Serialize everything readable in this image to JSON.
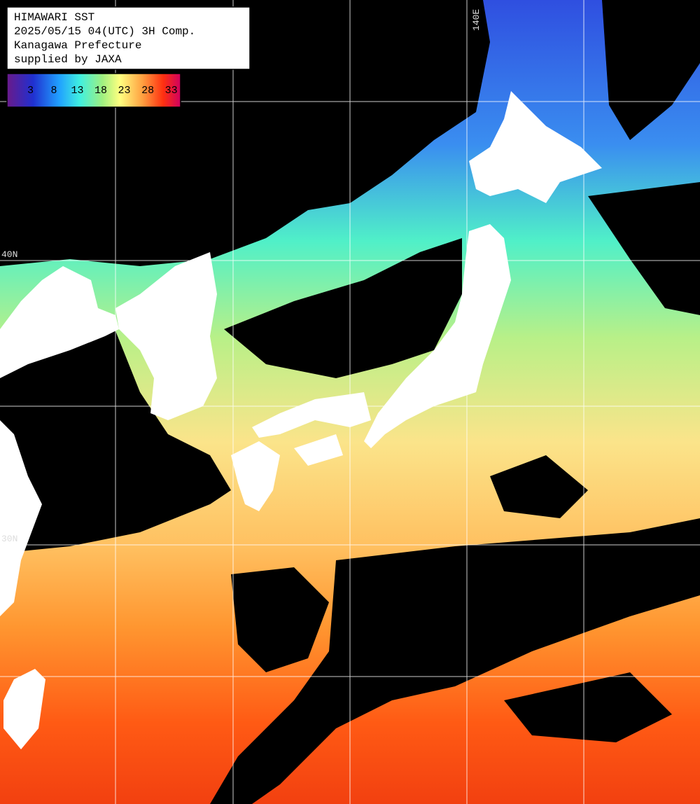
{
  "header": {
    "lines": [
      "HIMAWARI SST",
      "2025/05/15 04(UTC) 3H Comp.",
      "Kanagawa Prefecture",
      "supplied by JAXA"
    ]
  },
  "colorbar": {
    "range": [
      -2,
      35
    ],
    "ticks": [
      3,
      8,
      13,
      18,
      23,
      28,
      33
    ]
  },
  "grid_labels": {
    "lon": [
      "140E"
    ],
    "lat": [
      "40N",
      "30N"
    ]
  }
}
